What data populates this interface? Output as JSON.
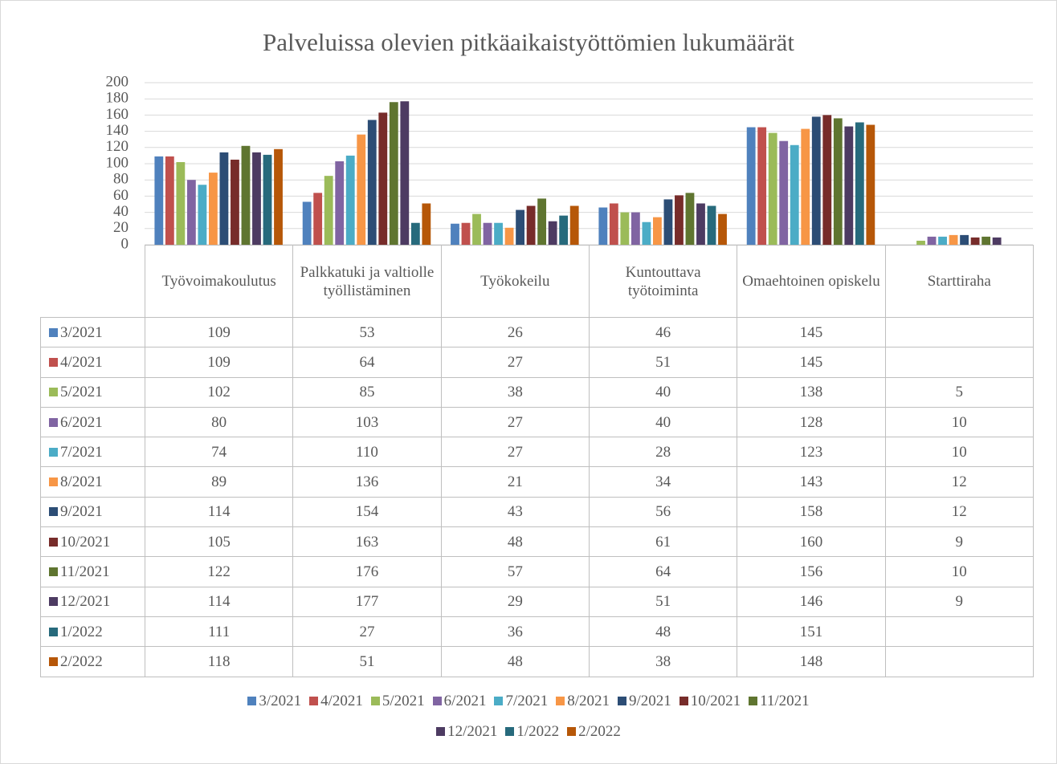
{
  "chart_data": {
    "type": "bar",
    "title": "Palveluissa olevien pitkäaikaistyöttömien lukumäärät",
    "categories": [
      "Työvoimakoulutus",
      "Palkkatuki ja valtiolle työllistäminen",
      "Työkokeilu",
      "Kuntouttava työtoiminta",
      "Omaehtoinen opiskelu",
      "Starttiraha"
    ],
    "series": [
      {
        "name": "3/2021",
        "color": "#4f81bd",
        "values": [
          109,
          53,
          26,
          46,
          145,
          null
        ]
      },
      {
        "name": "4/2021",
        "color": "#c0504d",
        "values": [
          109,
          64,
          27,
          51,
          145,
          null
        ]
      },
      {
        "name": "5/2021",
        "color": "#9bbb59",
        "values": [
          102,
          85,
          38,
          40,
          138,
          5
        ]
      },
      {
        "name": "6/2021",
        "color": "#8064a2",
        "values": [
          80,
          103,
          27,
          40,
          128,
          10
        ]
      },
      {
        "name": "7/2021",
        "color": "#4bacc6",
        "values": [
          74,
          110,
          27,
          28,
          123,
          10
        ]
      },
      {
        "name": "8/2021",
        "color": "#f79646",
        "values": [
          89,
          136,
          21,
          34,
          143,
          12
        ]
      },
      {
        "name": "9/2021",
        "color": "#2c4d75",
        "values": [
          114,
          154,
          43,
          56,
          158,
          12
        ]
      },
      {
        "name": "10/2021",
        "color": "#772c2a",
        "values": [
          105,
          163,
          48,
          61,
          160,
          9
        ]
      },
      {
        "name": "11/2021",
        "color": "#5f7530",
        "values": [
          122,
          176,
          57,
          64,
          156,
          10
        ]
      },
      {
        "name": "12/2021",
        "color": "#4d3b62",
        "values": [
          114,
          177,
          29,
          51,
          146,
          9
        ]
      },
      {
        "name": "1/2022",
        "color": "#276a7c",
        "values": [
          111,
          27,
          36,
          48,
          151,
          null
        ]
      },
      {
        "name": "2/2022",
        "color": "#b65708",
        "values": [
          118,
          51,
          48,
          38,
          148,
          null
        ]
      }
    ],
    "ylim": [
      0,
      200
    ],
    "yticks": [
      0,
      20,
      40,
      60,
      80,
      100,
      120,
      140,
      160,
      180,
      200
    ],
    "grid": true
  }
}
